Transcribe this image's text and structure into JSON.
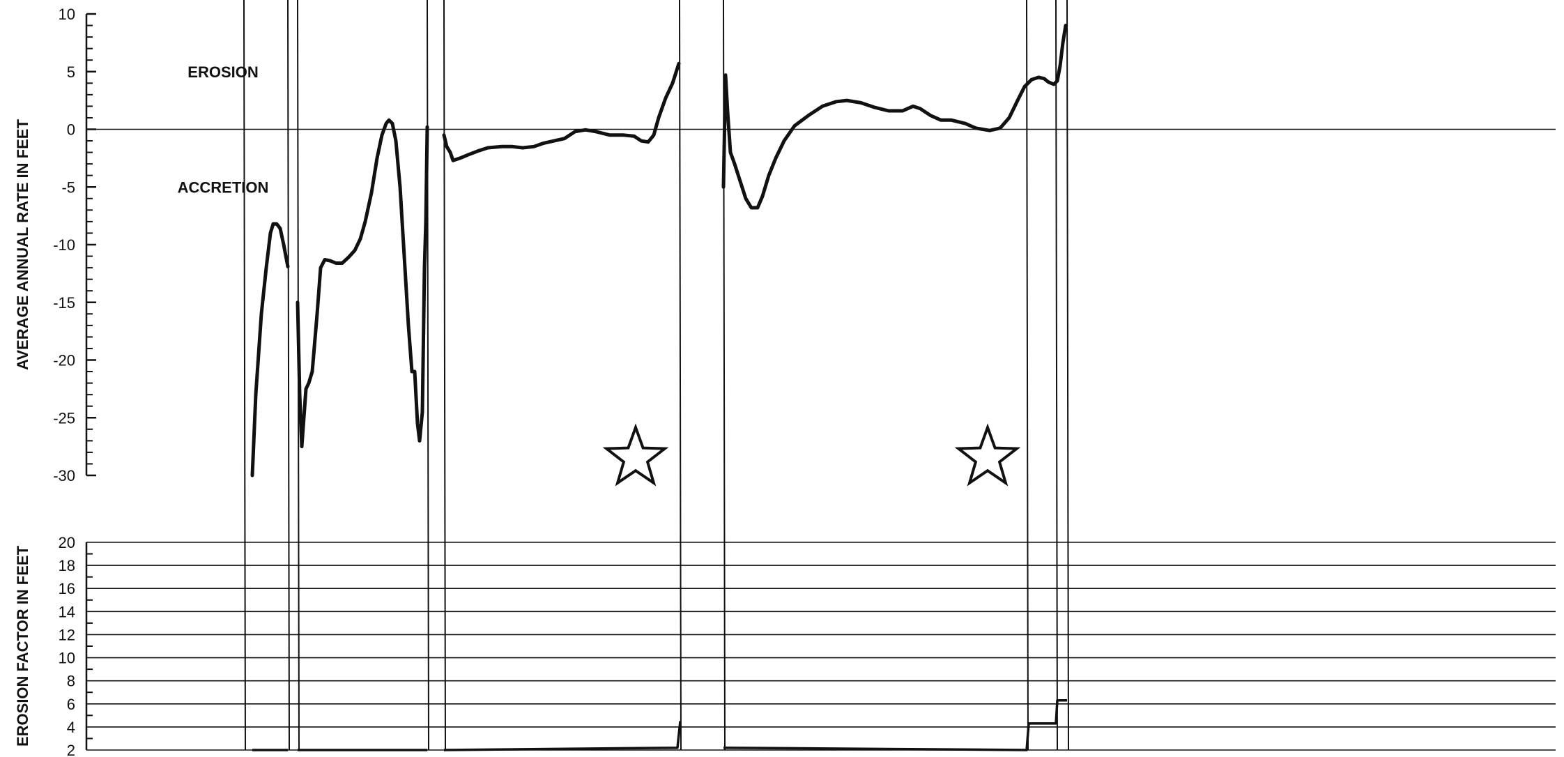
{
  "chart_data": [
    {
      "type": "line",
      "ylabel": "AVERAGE ANNUAL RATE IN FEET",
      "ylim": [
        -30,
        10
      ],
      "yticks": [
        "10",
        "5",
        "0",
        "-5",
        "-10",
        "-15",
        "-20",
        "-25",
        "-30"
      ],
      "annotations": [
        "EROSION",
        "ACCRETION"
      ],
      "zero_line": true,
      "series": [
        {
          "segment": 1,
          "points": [
            [
              362,
              -30
            ],
            [
              367,
              -23
            ],
            [
              375,
              -16
            ],
            [
              382,
              -12
            ],
            [
              388,
              -9
            ],
            [
              392,
              -8.2
            ],
            [
              397,
              -8.2
            ],
            [
              402,
              -8.6
            ],
            [
              407,
              -10
            ],
            [
              413,
              -11.9
            ]
          ]
        },
        {
          "segment": 2,
          "points": [
            [
              427,
              -15
            ],
            [
              430,
              -23
            ],
            [
              433,
              -27.5
            ],
            [
              439,
              -22.5
            ],
            [
              443,
              -22
            ],
            [
              448,
              -21
            ],
            [
              455,
              -16
            ],
            [
              460,
              -12
            ],
            [
              466,
              -11.3
            ],
            [
              474,
              -11.4
            ],
            [
              482,
              -11.6
            ],
            [
              491,
              -11.6
            ],
            [
              500,
              -11.1
            ],
            [
              509,
              -10.5
            ],
            [
              517,
              -9.5
            ],
            [
              524,
              -8
            ],
            [
              533,
              -5.5
            ],
            [
              541,
              -2.5
            ],
            [
              548,
              -0.5
            ],
            [
              554,
              0.5
            ],
            [
              558,
              0.8
            ],
            [
              563,
              0.5
            ],
            [
              568,
              -1
            ],
            [
              574,
              -5
            ],
            [
              580,
              -11
            ],
            [
              586,
              -17
            ],
            [
              591,
              -21
            ],
            [
              595,
              -21
            ],
            [
              599,
              -25.5
            ],
            [
              602,
              -27
            ],
            [
              606,
              -24.5
            ],
            [
              609,
              -12
            ],
            [
              611,
              -8
            ],
            [
              613,
              0.2
            ]
          ]
        },
        {
          "segment": 3,
          "points": [
            [
              637,
              -0.5
            ],
            [
              641,
              -1.5
            ],
            [
              646,
              -2
            ],
            [
              650,
              -2.7
            ],
            [
              660,
              -2.5
            ],
            [
              672,
              -2.2
            ],
            [
              685,
              -1.9
            ],
            [
              700,
              -1.6
            ],
            [
              720,
              -1.5
            ],
            [
              735,
              -1.5
            ],
            [
              750,
              -1.6
            ],
            [
              766,
              -1.5
            ],
            [
              780,
              -1.2
            ],
            [
              795,
              -1.0
            ],
            [
              810,
              -0.8
            ],
            [
              825,
              -0.2
            ],
            [
              840,
              -0.05
            ],
            [
              855,
              -0.2
            ],
            [
              875,
              -0.5
            ],
            [
              895,
              -0.5
            ],
            [
              910,
              -0.6
            ],
            [
              920,
              -1.0
            ],
            [
              930,
              -1.1
            ],
            [
              938,
              -0.5
            ],
            [
              945,
              1
            ],
            [
              955,
              2.7
            ],
            [
              965,
              4
            ],
            [
              974,
              5.7
            ]
          ]
        },
        {
          "segment": 4,
          "points": [
            [
              1038,
              -5
            ],
            [
              1041,
              4.7
            ],
            [
              1044,
              1.5
            ],
            [
              1048,
              -2
            ],
            [
              1054,
              -3
            ],
            [
              1062,
              -4.5
            ],
            [
              1070,
              -6
            ],
            [
              1078,
              -6.8
            ],
            [
              1087,
              -6.8
            ],
            [
              1094,
              -5.8
            ],
            [
              1103,
              -4
            ],
            [
              1113,
              -2.5
            ],
            [
              1125,
              -1
            ],
            [
              1140,
              0.3
            ],
            [
              1160,
              1.2
            ],
            [
              1180,
              2
            ],
            [
              1200,
              2.4
            ],
            [
              1215,
              2.5
            ],
            [
              1235,
              2.3
            ],
            [
              1255,
              1.9
            ],
            [
              1275,
              1.6
            ],
            [
              1295,
              1.6
            ],
            [
              1310,
              2
            ],
            [
              1320,
              1.8
            ],
            [
              1335,
              1.2
            ],
            [
              1350,
              0.8
            ],
            [
              1365,
              0.8
            ],
            [
              1385,
              0.5
            ],
            [
              1400,
              0.1
            ],
            [
              1420,
              -0.1
            ],
            [
              1435,
              0.1
            ],
            [
              1448,
              1
            ],
            [
              1460,
              2.5
            ],
            [
              1470,
              3.7
            ],
            [
              1480,
              4.3
            ],
            [
              1490,
              4.5
            ],
            [
              1498,
              4.4
            ],
            [
              1504,
              4.1
            ],
            [
              1512,
              3.9
            ],
            [
              1517,
              4.2
            ],
            [
              1521,
              5.5
            ],
            [
              1525,
              7.5
            ],
            [
              1529,
              9.0
            ]
          ]
        }
      ],
      "markers": [
        {
          "type": "star",
          "x": 912,
          "y": -28.5
        },
        {
          "type": "star",
          "x": 1417,
          "y": -28.5
        }
      ],
      "x_boundaries": [
        350,
        413,
        427,
        613,
        637,
        975,
        1038,
        1473,
        1515,
        1531
      ]
    },
    {
      "type": "line",
      "ylabel": "EROSION FACTOR IN FEET",
      "ylim": [
        2,
        20
      ],
      "yticks": [
        "20",
        "18",
        "16",
        "14",
        "12",
        "10",
        "8",
        "6",
        "4",
        "2"
      ],
      "grid": true,
      "series": [
        {
          "segment": 1,
          "points": [
            [
              362,
              2
            ],
            [
              413,
              2
            ]
          ]
        },
        {
          "segment": 2,
          "points": [
            [
              427,
              2
            ],
            [
              613,
              2
            ]
          ]
        },
        {
          "segment": 3,
          "points": [
            [
              637,
              2
            ],
            [
              972,
              2.2
            ],
            [
              976,
              4.5
            ]
          ]
        },
        {
          "segment": 4,
          "points": [
            [
              1038,
              2.2
            ],
            [
              1473,
              2
            ],
            [
              1476,
              4.3
            ],
            [
              1515,
              4.3
            ],
            [
              1517,
              6.3
            ],
            [
              1531,
              6.3
            ]
          ]
        }
      ]
    }
  ]
}
